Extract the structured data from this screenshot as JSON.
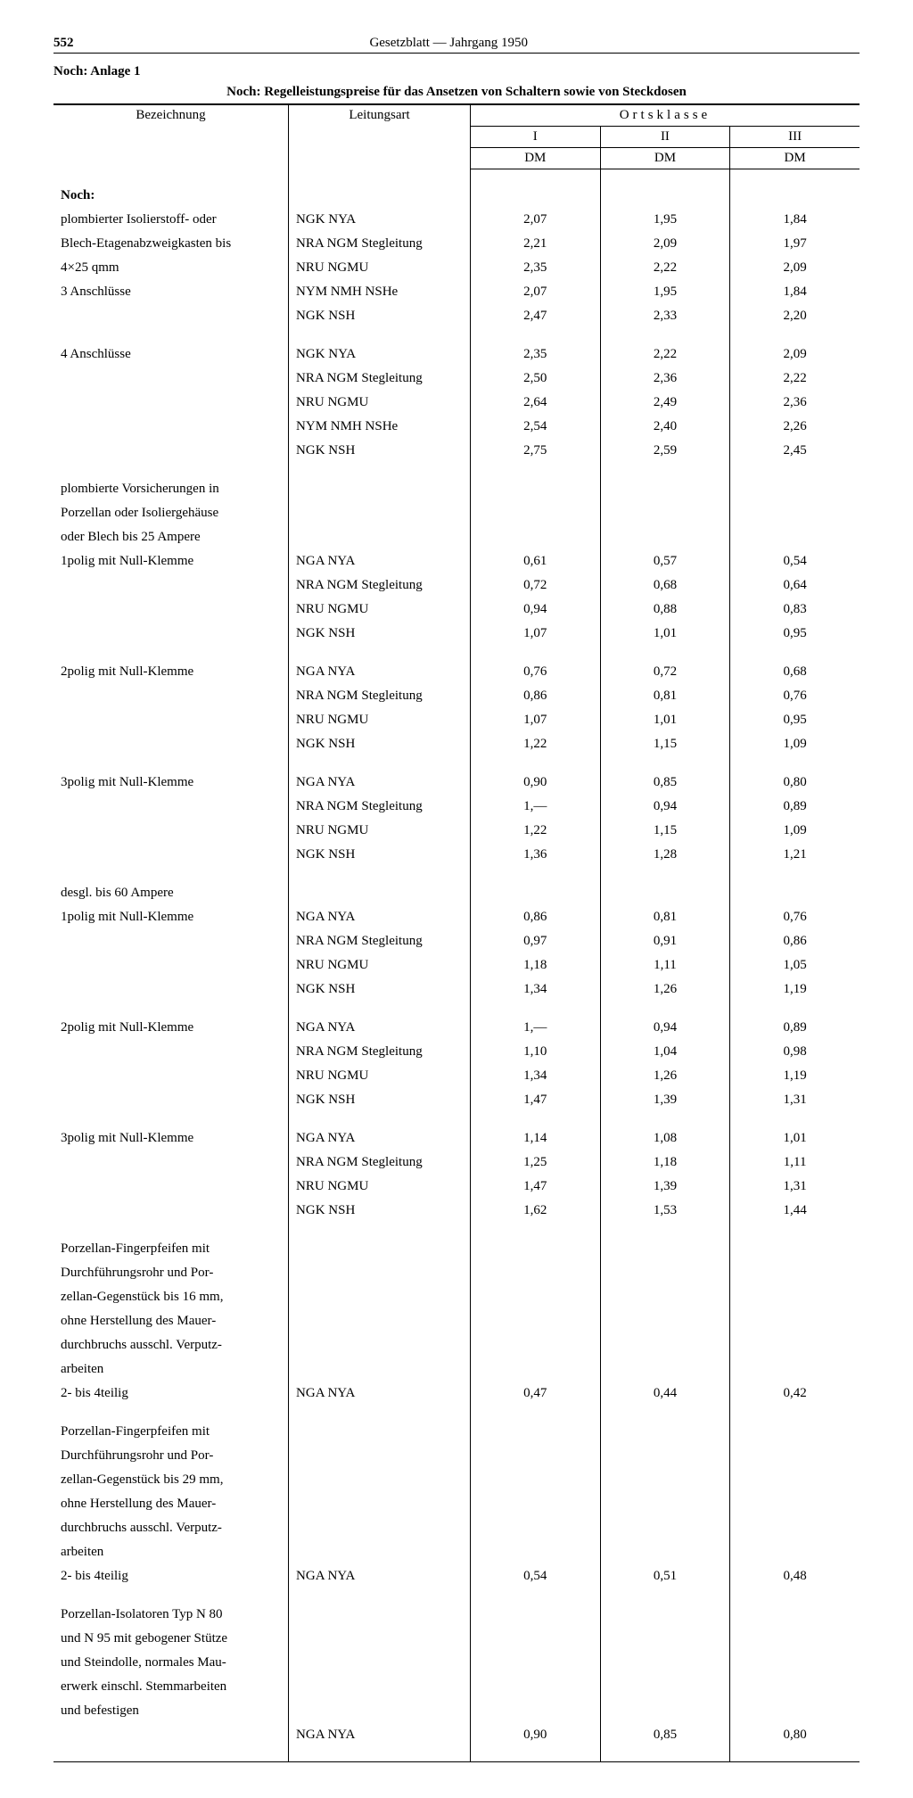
{
  "page_number": "552",
  "header_title": "Gesetzblatt — Jahrgang 1950",
  "anlage_label": "Noch: Anlage 1",
  "subtitle": "Noch: Regelleistungspreise für das Ansetzen von Schaltern sowie von Steckdosen",
  "columns": {
    "bezeichnung": "Bezeichnung",
    "leitungsart": "Leitungsart",
    "ortsklasse": "Ortsklasse",
    "i": "I",
    "ii": "II",
    "iii": "III",
    "dm": "DM"
  },
  "groups": [
    {
      "heading": "Noch:",
      "heading_bold": true,
      "blocks": [
        {
          "desc_rows": [
            "plombierter Isolierstoff- oder",
            "Blech-Etagenabzweigkasten bis",
            "4×25 qmm",
            "3 Anschlüsse"
          ],
          "desc_indent": [
            0,
            0,
            0,
            1
          ],
          "leit": [
            "NGK NYA",
            "NRA NGM Stegleitung",
            "NRU NGMU",
            "NYM NMH NSHe",
            "NGK NSH"
          ],
          "vals": [
            [
              "2,07",
              "1,95",
              "1,84"
            ],
            [
              "2,21",
              "2,09",
              "1,97"
            ],
            [
              "2,35",
              "2,22",
              "2,09"
            ],
            [
              "2,07",
              "1,95",
              "1,84"
            ],
            [
              "2,47",
              "2,33",
              "2,20"
            ]
          ]
        },
        {
          "desc_rows": [
            "4 Anschlüsse"
          ],
          "desc_indent": [
            1
          ],
          "leit": [
            "NGK NYA",
            "NRA NGM Stegleitung",
            "NRU NGMU",
            "NYM NMH NSHe",
            "NGK NSH"
          ],
          "vals": [
            [
              "2,35",
              "2,22",
              "2,09"
            ],
            [
              "2,50",
              "2,36",
              "2,22"
            ],
            [
              "2,64",
              "2,49",
              "2,36"
            ],
            [
              "2,54",
              "2,40",
              "2,26"
            ],
            [
              "2,75",
              "2,59",
              "2,45"
            ]
          ]
        }
      ]
    },
    {
      "heading": "plombierte Vorsicherungen in Porzellan oder Isoliergehäuse oder Blech bis 25 Ampere",
      "heading_bold": false,
      "heading_multiline": [
        "plombierte Vorsicherungen in",
        "Porzellan oder Isoliergehäuse",
        "oder Blech bis 25 Ampere"
      ],
      "blocks": [
        {
          "desc_rows": [
            "1polig mit Null-Klemme"
          ],
          "desc_indent": [
            1
          ],
          "leit": [
            "NGA NYA",
            "NRA NGM Stegleitung",
            "NRU NGMU",
            "NGK NSH"
          ],
          "vals": [
            [
              "0,61",
              "0,57",
              "0,54"
            ],
            [
              "0,72",
              "0,68",
              "0,64"
            ],
            [
              "0,94",
              "0,88",
              "0,83"
            ],
            [
              "1,07",
              "1,01",
              "0,95"
            ]
          ]
        },
        {
          "desc_rows": [
            "2polig mit Null-Klemme"
          ],
          "desc_indent": [
            1
          ],
          "leit": [
            "NGA NYA",
            "NRA NGM Stegleitung",
            "NRU NGMU",
            "NGK NSH"
          ],
          "vals": [
            [
              "0,76",
              "0,72",
              "0,68"
            ],
            [
              "0,86",
              "0,81",
              "0,76"
            ],
            [
              "1,07",
              "1,01",
              "0,95"
            ],
            [
              "1,22",
              "1,15",
              "1,09"
            ]
          ]
        },
        {
          "desc_rows": [
            "3polig mit Null-Klemme"
          ],
          "desc_indent": [
            1
          ],
          "leit": [
            "NGA NYA",
            "NRA NGM Stegleitung",
            "NRU NGMU",
            "NGK NSH"
          ],
          "vals": [
            [
              "0,90",
              "0,85",
              "0,80"
            ],
            [
              "1,—",
              "0,94",
              "0,89"
            ],
            [
              "1,22",
              "1,15",
              "1,09"
            ],
            [
              "1,36",
              "1,28",
              "1,21"
            ]
          ]
        }
      ]
    },
    {
      "heading": "desgl. bis 60 Ampere",
      "heading_bold": false,
      "blocks": [
        {
          "desc_rows": [
            "1polig mit Null-Klemme"
          ],
          "desc_indent": [
            1
          ],
          "leit": [
            "NGA NYA",
            "NRA NGM Stegleitung",
            "NRU NGMU",
            "NGK NSH"
          ],
          "vals": [
            [
              "0,86",
              "0,81",
              "0,76"
            ],
            [
              "0,97",
              "0,91",
              "0,86"
            ],
            [
              "1,18",
              "1,11",
              "1,05"
            ],
            [
              "1,34",
              "1,26",
              "1,19"
            ]
          ]
        },
        {
          "desc_rows": [
            "2polig mit Null-Klemme"
          ],
          "desc_indent": [
            1
          ],
          "leit": [
            "NGA NYA",
            "NRA NGM Stegleitung",
            "NRU NGMU",
            "NGK NSH"
          ],
          "vals": [
            [
              "1,—",
              "0,94",
              "0,89"
            ],
            [
              "1,10",
              "1,04",
              "0,98"
            ],
            [
              "1,34",
              "1,26",
              "1,19"
            ],
            [
              "1,47",
              "1,39",
              "1,31"
            ]
          ]
        },
        {
          "desc_rows": [
            "3polig mit Null-Klemme"
          ],
          "desc_indent": [
            1
          ],
          "leit": [
            "NGA NYA",
            "NRA NGM Stegleitung",
            "NRU NGMU",
            "NGK NSH"
          ],
          "vals": [
            [
              "1,14",
              "1,08",
              "1,01"
            ],
            [
              "1,25",
              "1,18",
              "1,11"
            ],
            [
              "1,47",
              "1,39",
              "1,31"
            ],
            [
              "1,62",
              "1,53",
              "1,44"
            ]
          ]
        }
      ]
    },
    {
      "heading_multiline": [
        "Porzellan-Fingerpfeifen mit",
        "Durchführungsrohr und Por-",
        "zellan-Gegenstück bis 16 mm,",
        "ohne Herstellung des Mauer-",
        "durchbruchs ausschl. Verputz-",
        "arbeiten"
      ],
      "heading_justify": true,
      "blocks": [
        {
          "desc_rows": [
            "2- bis 4teilig"
          ],
          "desc_indent": [
            1
          ],
          "leit": [
            "NGA NYA"
          ],
          "vals": [
            [
              "0,47",
              "0,44",
              "0,42"
            ]
          ]
        }
      ]
    },
    {
      "heading_multiline": [
        "Porzellan-Fingerpfeifen mit",
        "Durchführungsrohr und Por-",
        "zellan-Gegenstück bis 29 mm,",
        "ohne Herstellung des Mauer-",
        "durchbruchs ausschl. Verputz-",
        "arbeiten"
      ],
      "heading_justify": true,
      "blocks": [
        {
          "desc_rows": [
            "2- bis 4teilig"
          ],
          "desc_indent": [
            1
          ],
          "leit": [
            "NGA NYA"
          ],
          "vals": [
            [
              "0,54",
              "0,51",
              "0,48"
            ]
          ]
        }
      ]
    },
    {
      "heading_multiline": [
        "Porzellan-Isolatoren Typ N 80",
        "und N 95 mit gebogener Stütze",
        "und Steindolle, normales Mau-",
        "erwerk einschl. Stemmarbeiten",
        "und befestigen"
      ],
      "blocks": [
        {
          "desc_rows": [],
          "desc_indent": [],
          "leit": [
            "NGA NYA"
          ],
          "vals": [
            [
              "0,90",
              "0,85",
              "0,80"
            ]
          ]
        }
      ]
    }
  ]
}
